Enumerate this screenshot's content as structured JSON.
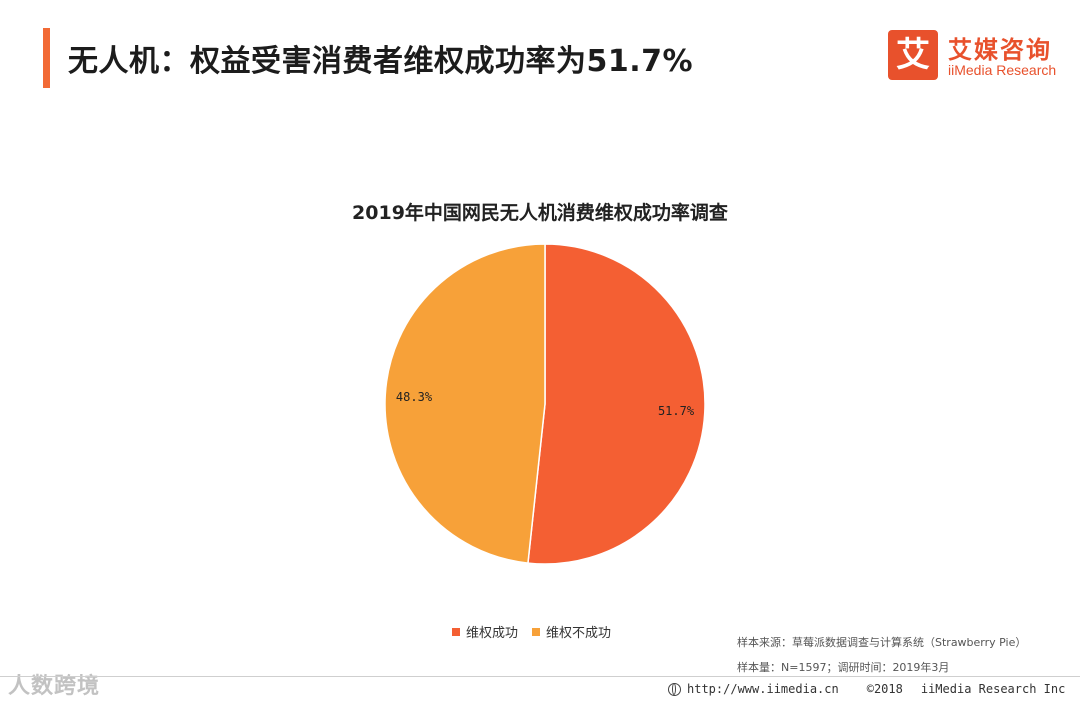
{
  "header": {
    "title": "无人机：权益受害消费者维权成功率为51.7%",
    "accent_color": "#f26a35"
  },
  "logo": {
    "mark": "艾",
    "name_cn": "艾媒咨询",
    "name_en": "iiMedia Research",
    "color": "#e8512c"
  },
  "chart_data": {
    "type": "pie",
    "title": "2019年中国网民无人机消费维权成功率调查",
    "slices": [
      {
        "label": "维权成功",
        "value": 51.7,
        "display": "51.7%",
        "color": "#f45f33"
      },
      {
        "label": "维权不成功",
        "value": 48.3,
        "display": "48.3%",
        "color": "#f7a139"
      }
    ],
    "legend_position": "bottom"
  },
  "notes": {
    "source": "样本来源：草莓派数据调查与计算系统（Strawberry Pie）",
    "sample": "样本量：N=1597；调研时间：2019年3月"
  },
  "footer": {
    "url": "http://www.iimedia.cn",
    "copyright": "©2018",
    "company": "iiMedia Research Inc"
  },
  "watermark": "人数跨境"
}
